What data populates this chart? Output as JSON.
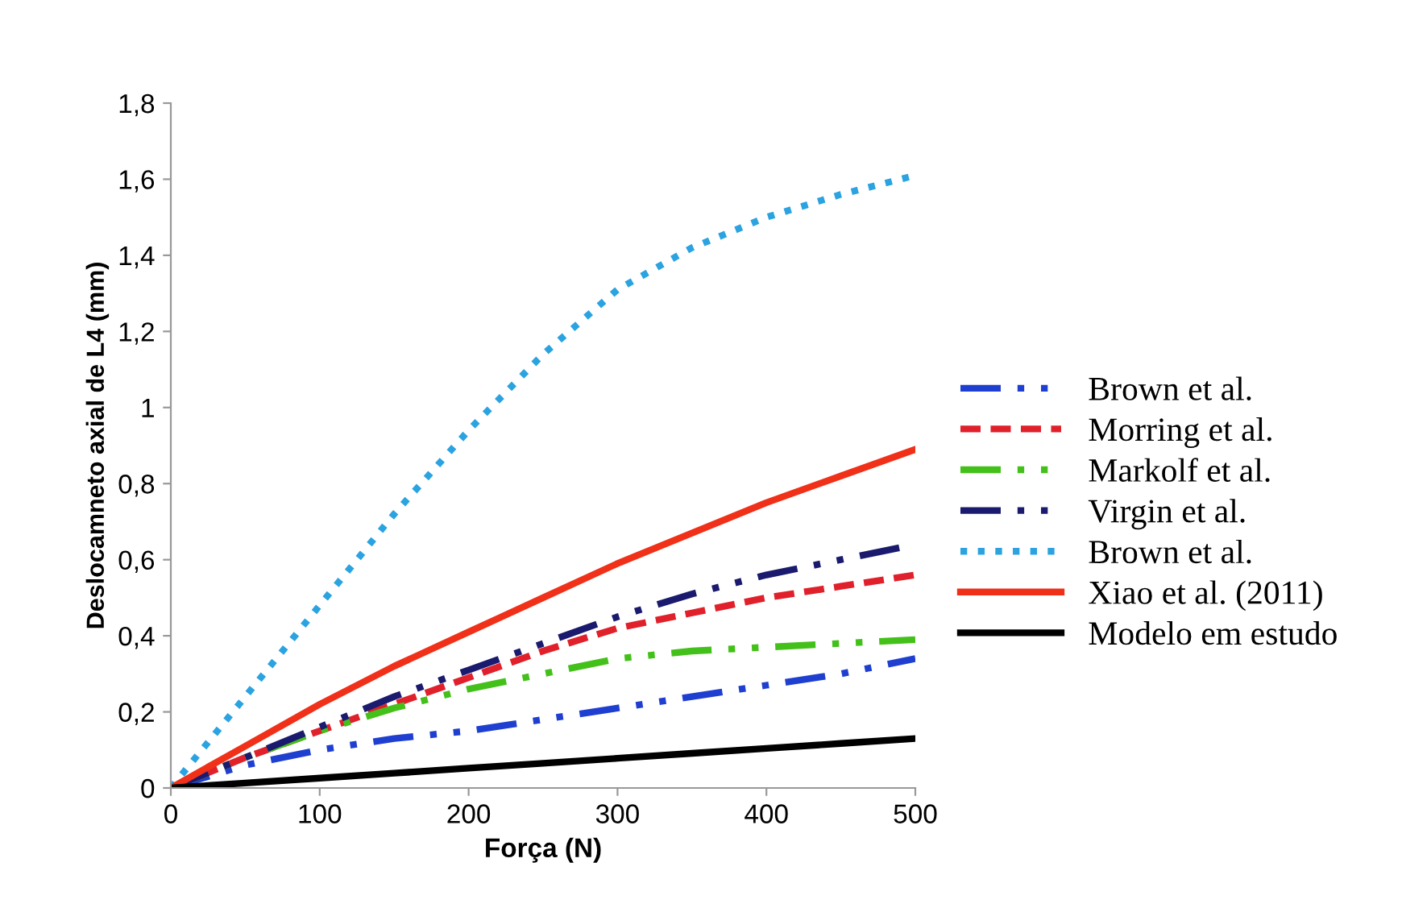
{
  "chart_data": {
    "type": "line",
    "xlabel": "Força (N)",
    "ylabel": "Deslocamneto axial de L4 (mm)",
    "x": [
      0,
      50,
      100,
      150,
      200,
      250,
      300,
      350,
      400,
      450,
      500
    ],
    "series": [
      {
        "name": "Brown et al.",
        "color": "#1f3fd0",
        "line_style": "dashdot",
        "values": [
          0,
          0.06,
          0.1,
          0.13,
          0.15,
          0.18,
          0.21,
          0.24,
          0.27,
          0.3,
          0.34
        ]
      },
      {
        "name": "Morring et al.",
        "color": "#e0202a",
        "line_style": "dashed",
        "values": [
          0,
          0.08,
          0.15,
          0.22,
          0.29,
          0.36,
          0.42,
          0.46,
          0.5,
          0.53,
          0.56
        ]
      },
      {
        "name": "Markolf et al.",
        "color": "#44c01a",
        "line_style": "dashdot",
        "values": [
          0,
          0.08,
          0.15,
          0.21,
          0.26,
          0.3,
          0.34,
          0.36,
          0.37,
          0.38,
          0.39
        ]
      },
      {
        "name": "Virgin et al.",
        "color": "#1a1a6e",
        "line_style": "dashdot",
        "values": [
          0,
          0.08,
          0.16,
          0.24,
          0.31,
          0.38,
          0.45,
          0.51,
          0.56,
          0.6,
          0.64
        ]
      },
      {
        "name": "Brown et al.",
        "color": "#2aa3e0",
        "line_style": "dotted",
        "values": [
          0,
          0.24,
          0.48,
          0.72,
          0.94,
          1.14,
          1.31,
          1.42,
          1.5,
          1.56,
          1.61
        ]
      },
      {
        "name": "Xiao et al. (2011)",
        "color": "#f03018",
        "line_style": "solid",
        "values": [
          0,
          0.11,
          0.22,
          0.32,
          0.41,
          0.5,
          0.59,
          0.67,
          0.75,
          0.82,
          0.89
        ]
      },
      {
        "name": "Modelo em estudo",
        "color": "#000000",
        "line_style": "solid",
        "values": [
          0,
          0.013,
          0.026,
          0.039,
          0.052,
          0.065,
          0.078,
          0.091,
          0.104,
          0.117,
          0.13
        ]
      }
    ],
    "xlim": [
      0,
      500
    ],
    "xticks": [
      0,
      100,
      200,
      300,
      400,
      500
    ],
    "ylim": [
      0,
      1.8
    ],
    "yticks": [
      0,
      {
        "value": 0.2,
        "label": "0,2"
      },
      {
        "value": 0.4,
        "label": "0,4"
      },
      {
        "value": 0.6,
        "label": "0,6"
      },
      {
        "value": 0.8,
        "label": "0,8"
      },
      1,
      {
        "value": 1.2,
        "label": "1,2"
      },
      {
        "value": 1.4,
        "label": "1,4"
      },
      {
        "value": 1.6,
        "label": "1,6"
      },
      {
        "value": 1.8,
        "label": "1,8"
      }
    ],
    "grid": false,
    "legend": "right"
  }
}
